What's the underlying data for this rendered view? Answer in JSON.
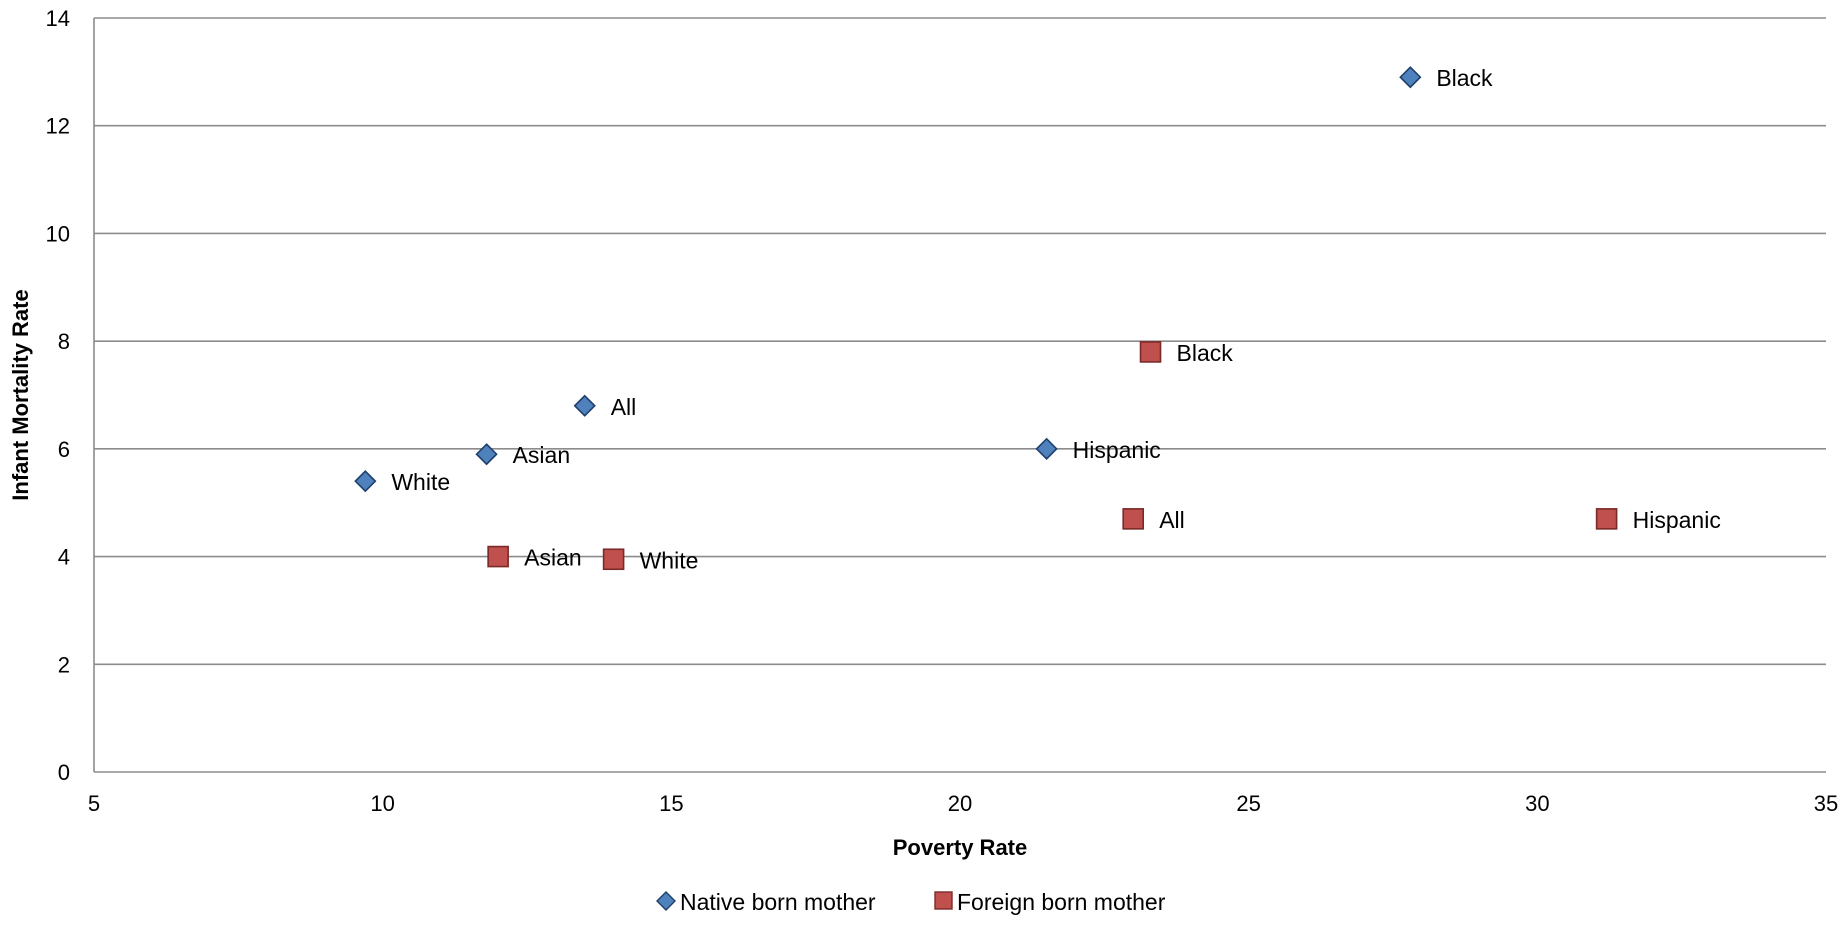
{
  "chart_data": {
    "type": "scatter",
    "title": "",
    "xlabel": "Poverty Rate",
    "ylabel": "Infant Mortality Rate",
    "xlim": [
      5,
      35
    ],
    "ylim": [
      0,
      14
    ],
    "xticks": [
      5,
      10,
      15,
      20,
      25,
      30,
      35
    ],
    "yticks": [
      0,
      2,
      4,
      6,
      8,
      10,
      12,
      14
    ],
    "grid": "horizontal",
    "legend_position": "bottom",
    "series": [
      {
        "name": "Native born mother",
        "marker": "diamond",
        "color": "#4F81BD",
        "edge_color": "#1F3F6B",
        "points": [
          {
            "label": "White",
            "x": 9.7,
            "y": 5.4
          },
          {
            "label": "Asian",
            "x": 11.8,
            "y": 5.9
          },
          {
            "label": "All",
            "x": 13.5,
            "y": 6.8
          },
          {
            "label": "Hispanic",
            "x": 21.5,
            "y": 6.0
          },
          {
            "label": "Black",
            "x": 27.8,
            "y": 12.9
          }
        ]
      },
      {
        "name": "Foreign born mother",
        "marker": "square",
        "color": "#C0504D",
        "edge_color": "#7A2A28",
        "points": [
          {
            "label": "Asian",
            "x": 12.0,
            "y": 4.0
          },
          {
            "label": "White",
            "x": 14.0,
            "y": 3.95
          },
          {
            "label": "All",
            "x": 23.0,
            "y": 4.7
          },
          {
            "label": "Black",
            "x": 23.3,
            "y": 7.8
          },
          {
            "label": "Hispanic",
            "x": 31.2,
            "y": 4.7
          }
        ]
      }
    ]
  }
}
